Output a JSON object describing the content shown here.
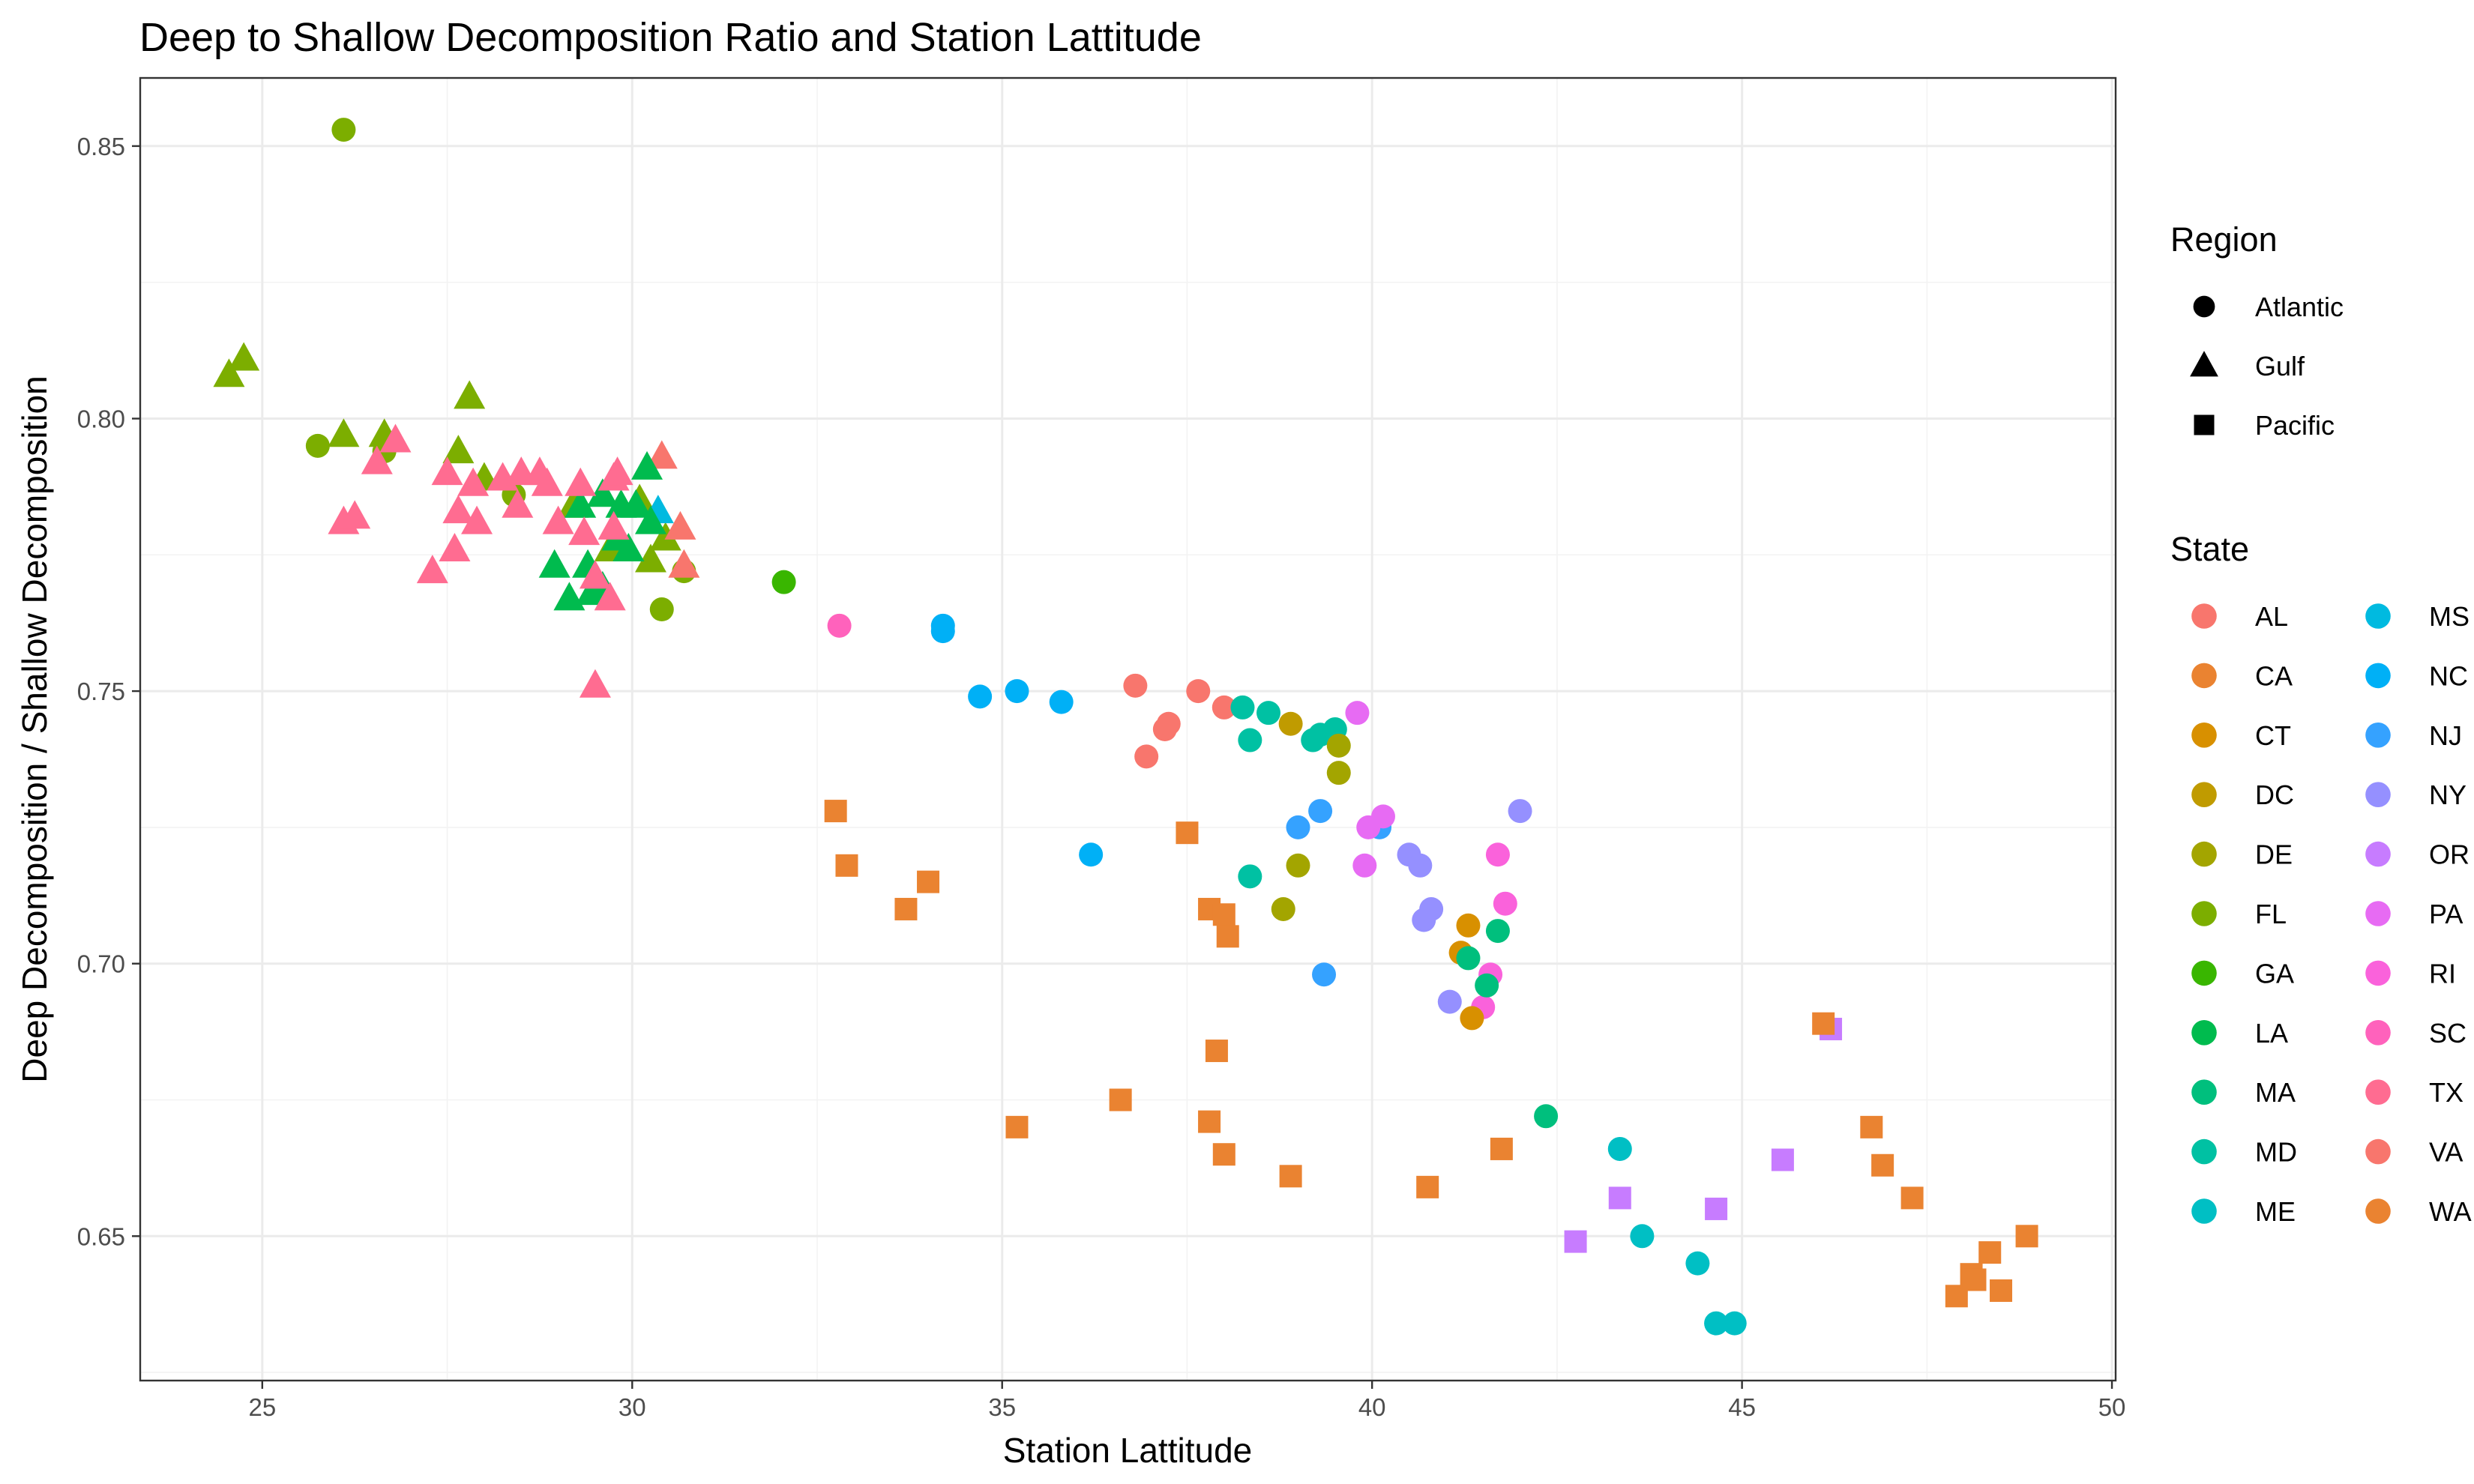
{
  "chart_data": {
    "type": "scatter",
    "title": "Deep to Shallow Decomposition Ratio and Station Lattitude",
    "xlabel": "Station Lattitude",
    "ylabel": "Deep Decomposition / Shallow Decomposition",
    "xlim": [
      23.35,
      50.05
    ],
    "ylim": [
      0.6235,
      0.8625
    ],
    "x_ticks": [
      25,
      30,
      35,
      40,
      45,
      50
    ],
    "y_ticks": [
      0.65,
      0.7,
      0.75,
      0.8,
      0.85
    ],
    "x_tick_labels": [
      "25",
      "30",
      "35",
      "40",
      "45",
      "50"
    ],
    "y_tick_labels": [
      "0.65",
      "0.70",
      "0.75",
      "0.80",
      "0.85"
    ],
    "grid": true,
    "legend_placement": "right",
    "shape_legend": {
      "title": "Region",
      "items": [
        {
          "label": "Atlantic",
          "shape": "circle"
        },
        {
          "label": "Gulf",
          "shape": "triangle"
        },
        {
          "label": "Pacific",
          "shape": "square"
        }
      ]
    },
    "color_legend": {
      "title": "State",
      "items": [
        {
          "label": "AL",
          "color": "#F8766D"
        },
        {
          "label": "CA",
          "color": "#EA8331"
        },
        {
          "label": "CT",
          "color": "#D89000"
        },
        {
          "label": "DC",
          "color": "#C09B00"
        },
        {
          "label": "DE",
          "color": "#A3A500"
        },
        {
          "label": "FL",
          "color": "#7CAE00"
        },
        {
          "label": "GA",
          "color": "#39B600"
        },
        {
          "label": "LA",
          "color": "#00BB4E"
        },
        {
          "label": "MA",
          "color": "#00BF7D"
        },
        {
          "label": "MD",
          "color": "#00C1A3"
        },
        {
          "label": "ME",
          "color": "#00BFC4"
        },
        {
          "label": "MS",
          "color": "#00BAE0"
        },
        {
          "label": "NC",
          "color": "#00B0F6"
        },
        {
          "label": "NJ",
          "color": "#35A2FF"
        },
        {
          "label": "NY",
          "color": "#9590FF"
        },
        {
          "label": "OR",
          "color": "#C77CFF"
        },
        {
          "label": "PA",
          "color": "#E76BF3"
        },
        {
          "label": "RI",
          "color": "#FA62DB"
        },
        {
          "label": "SC",
          "color": "#FF62BC"
        },
        {
          "label": "TX",
          "color": "#FF6C91"
        },
        {
          "label": "VA",
          "color": "#F8766D"
        },
        {
          "label": "WA",
          "color": "#EA8331"
        }
      ]
    },
    "points": [
      {
        "x": 26.1,
        "y": 0.853,
        "region": "Atlantic",
        "state": "FL"
      },
      {
        "x": 25.75,
        "y": 0.795,
        "region": "Atlantic",
        "state": "FL"
      },
      {
        "x": 26.65,
        "y": 0.794,
        "region": "Atlantic",
        "state": "FL"
      },
      {
        "x": 28.4,
        "y": 0.786,
        "region": "Atlantic",
        "state": "FL"
      },
      {
        "x": 30.4,
        "y": 0.765,
        "region": "Atlantic",
        "state": "FL"
      },
      {
        "x": 30.7,
        "y": 0.772,
        "region": "Atlantic",
        "state": "FL"
      },
      {
        "x": 32.05,
        "y": 0.77,
        "region": "Atlantic",
        "state": "GA"
      },
      {
        "x": 32.8,
        "y": 0.762,
        "region": "Atlantic",
        "state": "SC"
      },
      {
        "x": 34.2,
        "y": 0.762,
        "region": "Atlantic",
        "state": "NC"
      },
      {
        "x": 34.2,
        "y": 0.761,
        "region": "Atlantic",
        "state": "NC"
      },
      {
        "x": 34.7,
        "y": 0.749,
        "region": "Atlantic",
        "state": "NC"
      },
      {
        "x": 35.2,
        "y": 0.75,
        "region": "Atlantic",
        "state": "NC"
      },
      {
        "x": 35.8,
        "y": 0.748,
        "region": "Atlantic",
        "state": "NC"
      },
      {
        "x": 36.2,
        "y": 0.72,
        "region": "Atlantic",
        "state": "NC"
      },
      {
        "x": 36.8,
        "y": 0.751,
        "region": "Atlantic",
        "state": "VA"
      },
      {
        "x": 36.95,
        "y": 0.738,
        "region": "Atlantic",
        "state": "VA"
      },
      {
        "x": 37.2,
        "y": 0.743,
        "region": "Atlantic",
        "state": "VA"
      },
      {
        "x": 37.25,
        "y": 0.744,
        "region": "Atlantic",
        "state": "VA"
      },
      {
        "x": 37.65,
        "y": 0.75,
        "region": "Atlantic",
        "state": "VA"
      },
      {
        "x": 38.0,
        "y": 0.747,
        "region": "Atlantic",
        "state": "VA"
      },
      {
        "x": 38.25,
        "y": 0.747,
        "region": "Atlantic",
        "state": "MD"
      },
      {
        "x": 38.35,
        "y": 0.741,
        "region": "Atlantic",
        "state": "MD"
      },
      {
        "x": 38.6,
        "y": 0.746,
        "region": "Atlantic",
        "state": "MD"
      },
      {
        "x": 38.35,
        "y": 0.716,
        "region": "Atlantic",
        "state": "MD"
      },
      {
        "x": 39.2,
        "y": 0.741,
        "region": "Atlantic",
        "state": "MD"
      },
      {
        "x": 39.3,
        "y": 0.742,
        "region": "Atlantic",
        "state": "MD"
      },
      {
        "x": 39.5,
        "y": 0.743,
        "region": "Atlantic",
        "state": "MD"
      },
      {
        "x": 38.9,
        "y": 0.744,
        "region": "Atlantic",
        "state": "DC"
      },
      {
        "x": 39.55,
        "y": 0.74,
        "region": "Atlantic",
        "state": "DE"
      },
      {
        "x": 39.55,
        "y": 0.735,
        "region": "Atlantic",
        "state": "DE"
      },
      {
        "x": 39.0,
        "y": 0.718,
        "region": "Atlantic",
        "state": "DE"
      },
      {
        "x": 38.8,
        "y": 0.71,
        "region": "Atlantic",
        "state": "DE"
      },
      {
        "x": 39.8,
        "y": 0.746,
        "region": "Atlantic",
        "state": "PA"
      },
      {
        "x": 39.0,
        "y": 0.725,
        "region": "Atlantic",
        "state": "NJ"
      },
      {
        "x": 39.3,
        "y": 0.728,
        "region": "Atlantic",
        "state": "NJ"
      },
      {
        "x": 39.35,
        "y": 0.698,
        "region": "Atlantic",
        "state": "NJ"
      },
      {
        "x": 40.1,
        "y": 0.725,
        "region": "Atlantic",
        "state": "NJ"
      },
      {
        "x": 40.5,
        "y": 0.72,
        "region": "Atlantic",
        "state": "NY"
      },
      {
        "x": 40.65,
        "y": 0.718,
        "region": "Atlantic",
        "state": "NY"
      },
      {
        "x": 40.8,
        "y": 0.71,
        "region": "Atlantic",
        "state": "NY"
      },
      {
        "x": 40.7,
        "y": 0.708,
        "region": "Atlantic",
        "state": "NY"
      },
      {
        "x": 41.05,
        "y": 0.693,
        "region": "Atlantic",
        "state": "NY"
      },
      {
        "x": 42.0,
        "y": 0.728,
        "region": "Atlantic",
        "state": "NY"
      },
      {
        "x": 40.15,
        "y": 0.727,
        "region": "Atlantic",
        "state": "PA"
      },
      {
        "x": 39.95,
        "y": 0.725,
        "region": "Atlantic",
        "state": "PA"
      },
      {
        "x": 39.9,
        "y": 0.718,
        "region": "Atlantic",
        "state": "PA"
      },
      {
        "x": 41.7,
        "y": 0.72,
        "region": "Atlantic",
        "state": "RI"
      },
      {
        "x": 41.8,
        "y": 0.711,
        "region": "Atlantic",
        "state": "RI"
      },
      {
        "x": 41.6,
        "y": 0.698,
        "region": "Atlantic",
        "state": "RI"
      },
      {
        "x": 41.5,
        "y": 0.692,
        "region": "Atlantic",
        "state": "RI"
      },
      {
        "x": 41.3,
        "y": 0.707,
        "region": "Atlantic",
        "state": "CT"
      },
      {
        "x": 41.2,
        "y": 0.702,
        "region": "Atlantic",
        "state": "CT"
      },
      {
        "x": 41.35,
        "y": 0.69,
        "region": "Atlantic",
        "state": "CT"
      },
      {
        "x": 41.3,
        "y": 0.701,
        "region": "Atlantic",
        "state": "MA"
      },
      {
        "x": 41.55,
        "y": 0.696,
        "region": "Atlantic",
        "state": "MA"
      },
      {
        "x": 41.7,
        "y": 0.706,
        "region": "Atlantic",
        "state": "MA"
      },
      {
        "x": 42.35,
        "y": 0.672,
        "region": "Atlantic",
        "state": "MA"
      },
      {
        "x": 43.35,
        "y": 0.666,
        "region": "Atlantic",
        "state": "ME"
      },
      {
        "x": 43.65,
        "y": 0.65,
        "region": "Atlantic",
        "state": "ME"
      },
      {
        "x": 44.4,
        "y": 0.645,
        "region": "Atlantic",
        "state": "ME"
      },
      {
        "x": 44.65,
        "y": 0.634,
        "region": "Atlantic",
        "state": "ME"
      },
      {
        "x": 44.9,
        "y": 0.634,
        "region": "Atlantic",
        "state": "ME"
      },
      {
        "x": 24.55,
        "y": 0.808,
        "region": "Gulf",
        "state": "FL"
      },
      {
        "x": 24.75,
        "y": 0.811,
        "region": "Gulf",
        "state": "FL"
      },
      {
        "x": 26.1,
        "y": 0.797,
        "region": "Gulf",
        "state": "FL"
      },
      {
        "x": 26.65,
        "y": 0.797,
        "region": "Gulf",
        "state": "FL"
      },
      {
        "x": 27.65,
        "y": 0.794,
        "region": "Gulf",
        "state": "FL"
      },
      {
        "x": 27.8,
        "y": 0.804,
        "region": "Gulf",
        "state": "FL"
      },
      {
        "x": 28.0,
        "y": 0.789,
        "region": "Gulf",
        "state": "FL"
      },
      {
        "x": 29.2,
        "y": 0.784,
        "region": "Gulf",
        "state": "FL"
      },
      {
        "x": 29.7,
        "y": 0.776,
        "region": "Gulf",
        "state": "FL"
      },
      {
        "x": 30.1,
        "y": 0.785,
        "region": "Gulf",
        "state": "FL"
      },
      {
        "x": 30.25,
        "y": 0.774,
        "region": "Gulf",
        "state": "FL"
      },
      {
        "x": 30.45,
        "y": 0.778,
        "region": "Gulf",
        "state": "FL"
      },
      {
        "x": 30.4,
        "y": 0.793,
        "region": "Gulf",
        "state": "AL"
      },
      {
        "x": 30.65,
        "y": 0.78,
        "region": "Gulf",
        "state": "AL"
      },
      {
        "x": 30.7,
        "y": 0.773,
        "region": "Gulf",
        "state": "AL"
      },
      {
        "x": 30.35,
        "y": 0.783,
        "region": "Gulf",
        "state": "MS"
      },
      {
        "x": 30.2,
        "y": 0.791,
        "region": "Gulf",
        "state": "LA"
      },
      {
        "x": 29.3,
        "y": 0.784,
        "region": "Gulf",
        "state": "LA"
      },
      {
        "x": 29.6,
        "y": 0.786,
        "region": "Gulf",
        "state": "LA"
      },
      {
        "x": 29.85,
        "y": 0.784,
        "region": "Gulf",
        "state": "LA"
      },
      {
        "x": 30.05,
        "y": 0.784,
        "region": "Gulf",
        "state": "LA"
      },
      {
        "x": 28.95,
        "y": 0.773,
        "region": "Gulf",
        "state": "LA"
      },
      {
        "x": 29.15,
        "y": 0.767,
        "region": "Gulf",
        "state": "LA"
      },
      {
        "x": 29.4,
        "y": 0.773,
        "region": "Gulf",
        "state": "LA"
      },
      {
        "x": 29.45,
        "y": 0.768,
        "region": "Gulf",
        "state": "LA"
      },
      {
        "x": 29.6,
        "y": 0.769,
        "region": "Gulf",
        "state": "LA"
      },
      {
        "x": 29.8,
        "y": 0.778,
        "region": "Gulf",
        "state": "LA"
      },
      {
        "x": 29.95,
        "y": 0.776,
        "region": "Gulf",
        "state": "LA"
      },
      {
        "x": 30.25,
        "y": 0.781,
        "region": "Gulf",
        "state": "LA"
      },
      {
        "x": 26.1,
        "y": 0.781,
        "region": "Gulf",
        "state": "TX"
      },
      {
        "x": 26.25,
        "y": 0.782,
        "region": "Gulf",
        "state": "TX"
      },
      {
        "x": 26.55,
        "y": 0.792,
        "region": "Gulf",
        "state": "TX"
      },
      {
        "x": 26.8,
        "y": 0.796,
        "region": "Gulf",
        "state": "TX"
      },
      {
        "x": 27.3,
        "y": 0.772,
        "region": "Gulf",
        "state": "TX"
      },
      {
        "x": 27.5,
        "y": 0.79,
        "region": "Gulf",
        "state": "TX"
      },
      {
        "x": 27.6,
        "y": 0.776,
        "region": "Gulf",
        "state": "TX"
      },
      {
        "x": 27.65,
        "y": 0.783,
        "region": "Gulf",
        "state": "TX"
      },
      {
        "x": 27.85,
        "y": 0.788,
        "region": "Gulf",
        "state": "TX"
      },
      {
        "x": 27.9,
        "y": 0.781,
        "region": "Gulf",
        "state": "TX"
      },
      {
        "x": 28.25,
        "y": 0.789,
        "region": "Gulf",
        "state": "TX"
      },
      {
        "x": 28.45,
        "y": 0.784,
        "region": "Gulf",
        "state": "TX"
      },
      {
        "x": 28.5,
        "y": 0.79,
        "region": "Gulf",
        "state": "TX"
      },
      {
        "x": 28.75,
        "y": 0.79,
        "region": "Gulf",
        "state": "TX"
      },
      {
        "x": 28.85,
        "y": 0.788,
        "region": "Gulf",
        "state": "TX"
      },
      {
        "x": 29.0,
        "y": 0.781,
        "region": "Gulf",
        "state": "TX"
      },
      {
        "x": 29.3,
        "y": 0.788,
        "region": "Gulf",
        "state": "TX"
      },
      {
        "x": 29.35,
        "y": 0.779,
        "region": "Gulf",
        "state": "TX"
      },
      {
        "x": 29.5,
        "y": 0.771,
        "region": "Gulf",
        "state": "TX"
      },
      {
        "x": 29.5,
        "y": 0.751,
        "region": "Gulf",
        "state": "TX"
      },
      {
        "x": 29.7,
        "y": 0.767,
        "region": "Gulf",
        "state": "TX"
      },
      {
        "x": 29.75,
        "y": 0.789,
        "region": "Gulf",
        "state": "TX"
      },
      {
        "x": 29.75,
        "y": 0.78,
        "region": "Gulf",
        "state": "TX"
      },
      {
        "x": 29.8,
        "y": 0.79,
        "region": "Gulf",
        "state": "TX"
      },
      {
        "x": 32.75,
        "y": 0.728,
        "region": "Pacific",
        "state": "CA"
      },
      {
        "x": 32.9,
        "y": 0.718,
        "region": "Pacific",
        "state": "CA"
      },
      {
        "x": 33.7,
        "y": 0.71,
        "region": "Pacific",
        "state": "CA"
      },
      {
        "x": 34.0,
        "y": 0.715,
        "region": "Pacific",
        "state": "CA"
      },
      {
        "x": 35.2,
        "y": 0.67,
        "region": "Pacific",
        "state": "CA"
      },
      {
        "x": 36.6,
        "y": 0.675,
        "region": "Pacific",
        "state": "CA"
      },
      {
        "x": 37.5,
        "y": 0.724,
        "region": "Pacific",
        "state": "CA"
      },
      {
        "x": 37.8,
        "y": 0.71,
        "region": "Pacific",
        "state": "CA"
      },
      {
        "x": 38.0,
        "y": 0.709,
        "region": "Pacific",
        "state": "CA"
      },
      {
        "x": 38.05,
        "y": 0.705,
        "region": "Pacific",
        "state": "CA"
      },
      {
        "x": 37.9,
        "y": 0.684,
        "region": "Pacific",
        "state": "CA"
      },
      {
        "x": 37.8,
        "y": 0.671,
        "region": "Pacific",
        "state": "CA"
      },
      {
        "x": 38.0,
        "y": 0.665,
        "region": "Pacific",
        "state": "CA"
      },
      {
        "x": 38.9,
        "y": 0.661,
        "region": "Pacific",
        "state": "CA"
      },
      {
        "x": 40.75,
        "y": 0.659,
        "region": "Pacific",
        "state": "CA"
      },
      {
        "x": 41.75,
        "y": 0.666,
        "region": "Pacific",
        "state": "CA"
      },
      {
        "x": 42.75,
        "y": 0.649,
        "region": "Pacific",
        "state": "OR"
      },
      {
        "x": 43.35,
        "y": 0.657,
        "region": "Pacific",
        "state": "OR"
      },
      {
        "x": 44.65,
        "y": 0.655,
        "region": "Pacific",
        "state": "OR"
      },
      {
        "x": 45.55,
        "y": 0.664,
        "region": "Pacific",
        "state": "OR"
      },
      {
        "x": 46.2,
        "y": 0.688,
        "region": "Pacific",
        "state": "OR"
      },
      {
        "x": 46.1,
        "y": 0.689,
        "region": "Pacific",
        "state": "WA"
      },
      {
        "x": 46.75,
        "y": 0.67,
        "region": "Pacific",
        "state": "WA"
      },
      {
        "x": 46.9,
        "y": 0.663,
        "region": "Pacific",
        "state": "WA"
      },
      {
        "x": 47.3,
        "y": 0.657,
        "region": "Pacific",
        "state": "WA"
      },
      {
        "x": 47.9,
        "y": 0.639,
        "region": "Pacific",
        "state": "WA"
      },
      {
        "x": 48.1,
        "y": 0.643,
        "region": "Pacific",
        "state": "WA"
      },
      {
        "x": 48.15,
        "y": 0.642,
        "region": "Pacific",
        "state": "WA"
      },
      {
        "x": 48.35,
        "y": 0.647,
        "region": "Pacific",
        "state": "WA"
      },
      {
        "x": 48.5,
        "y": 0.64,
        "region": "Pacific",
        "state": "WA"
      },
      {
        "x": 48.85,
        "y": 0.65,
        "region": "Pacific",
        "state": "WA"
      }
    ]
  }
}
